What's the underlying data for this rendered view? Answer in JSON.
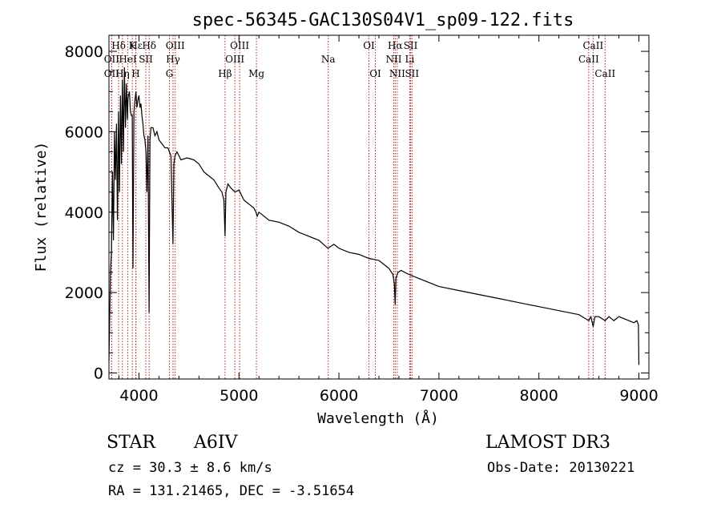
{
  "chart_data": {
    "type": "line",
    "title": "spec-56345-GAC130S04V1_sp09-122.fits",
    "xlabel": "Wavelength (Å)",
    "ylabel": "Flux (relative)",
    "xlim": [
      3700,
      9100
    ],
    "ylim": [
      -150,
      8400
    ],
    "xticks": [
      4000,
      5000,
      6000,
      7000,
      8000,
      9000
    ],
    "yticks": [
      0,
      2000,
      4000,
      6000,
      8000
    ],
    "series": [
      {
        "name": "flux",
        "x": [
          3700,
          3715,
          3725,
          3735,
          3745,
          3755,
          3765,
          3775,
          3785,
          3795,
          3805,
          3815,
          3825,
          3835,
          3845,
          3855,
          3865,
          3875,
          3885,
          3890,
          3895,
          3905,
          3915,
          3925,
          3933,
          3940,
          3950,
          3960,
          3970,
          3980,
          3990,
          4000,
          4010,
          4020,
          4030,
          4040,
          4050,
          4060,
          4070,
          4080,
          4090,
          4101,
          4110,
          4120,
          4140,
          4160,
          4180,
          4200,
          4230,
          4260,
          4290,
          4320,
          4340,
          4350,
          4360,
          4380,
          4420,
          4480,
          4550,
          4600,
          4650,
          4700,
          4750,
          4800,
          4830,
          4850,
          4861,
          4870,
          4890,
          4920,
          4960,
          5000,
          5050,
          5100,
          5150,
          5170,
          5183,
          5200,
          5250,
          5300,
          5400,
          5500,
          5600,
          5700,
          5800,
          5890,
          5950,
          6000,
          6100,
          6200,
          6300,
          6400,
          6450,
          6500,
          6540,
          6555,
          6563,
          6570,
          6590,
          6620,
          6700,
          6800,
          6900,
          7000,
          7200,
          7400,
          7600,
          7800,
          8000,
          8200,
          8400,
          8498,
          8520,
          8542,
          8560,
          8600,
          8662,
          8700,
          8750,
          8800,
          8850,
          8900,
          8950,
          8980,
          8995,
          9000
        ],
        "values": [
          300,
          2500,
          3000,
          5000,
          3300,
          6000,
          4800,
          6200,
          3800,
          6500,
          4500,
          6900,
          5200,
          7300,
          5500,
          7600,
          6100,
          7200,
          6300,
          6800,
          6900,
          7000,
          6500,
          6400,
          6400,
          2600,
          6500,
          6800,
          7000,
          6600,
          6800,
          6900,
          6600,
          6700,
          6400,
          6200,
          5900,
          5800,
          5500,
          4500,
          5900,
          1500,
          5800,
          6100,
          6100,
          5900,
          6000,
          5800,
          5700,
          5600,
          5600,
          5400,
          3200,
          5200,
          5400,
          5500,
          5300,
          5350,
          5300,
          5200,
          5000,
          4900,
          4800,
          4600,
          4500,
          4300,
          3400,
          4500,
          4700,
          4600,
          4500,
          4550,
          4300,
          4200,
          4100,
          4000,
          3900,
          4000,
          3900,
          3800,
          3750,
          3650,
          3500,
          3400,
          3300,
          3100,
          3200,
          3100,
          3000,
          2950,
          2850,
          2800,
          2700,
          2600,
          2450,
          2200,
          1700,
          2350,
          2500,
          2550,
          2450,
          2350,
          2250,
          2150,
          2050,
          1950,
          1850,
          1750,
          1650,
          1550,
          1450,
          1300,
          1400,
          1150,
          1400,
          1400,
          1300,
          1400,
          1300,
          1400,
          1350,
          1300,
          1250,
          1300,
          1200,
          200
        ]
      }
    ],
    "lines": [
      {
        "label": "Hδ",
        "x": 3797,
        "row": 0
      },
      {
        "label": "K",
        "x": 3934,
        "row": 0
      },
      {
        "label": "Hε",
        "x": 3970,
        "row": 0
      },
      {
        "label": "Hδ",
        "x": 4102,
        "row": 0
      },
      {
        "label": "OIII",
        "x": 4363,
        "row": 0
      },
      {
        "label": "OIII",
        "x": 5007,
        "row": 0
      },
      {
        "label": "OI",
        "x": 6300,
        "row": 0
      },
      {
        "label": "Hα",
        "x": 6563,
        "row": 0
      },
      {
        "label": "SII",
        "x": 6717,
        "row": 0
      },
      {
        "label": "CaII",
        "x": 8542,
        "row": 0
      },
      {
        "label": "OII",
        "x": 3727,
        "row": 1
      },
      {
        "label": "HeI",
        "x": 3889,
        "row": 1
      },
      {
        "label": "SII",
        "x": 4069,
        "row": 1
      },
      {
        "label": "Hγ",
        "x": 4341,
        "row": 1
      },
      {
        "label": "OIII",
        "x": 4959,
        "row": 1
      },
      {
        "label": "Na",
        "x": 5893,
        "row": 1
      },
      {
        "label": "NII",
        "x": 6548,
        "row": 1
      },
      {
        "label": "Li",
        "x": 6708,
        "row": 1
      },
      {
        "label": "CaII",
        "x": 8498,
        "row": 1
      },
      {
        "label": "OII",
        "x": 3727,
        "row": 2
      },
      {
        "label": "Hη",
        "x": 3835,
        "row": 2
      },
      {
        "label": "H",
        "x": 3968,
        "row": 2
      },
      {
        "label": "G",
        "x": 4305,
        "row": 2
      },
      {
        "label": "Hβ",
        "x": 4861,
        "row": 2
      },
      {
        "label": "Mg",
        "x": 5175,
        "row": 2
      },
      {
        "label": "OI",
        "x": 6364,
        "row": 2
      },
      {
        "label": "NII",
        "x": 6583,
        "row": 2
      },
      {
        "label": "SII",
        "x": 6731,
        "row": 2
      },
      {
        "label": "CaII",
        "x": 8662,
        "row": 2
      }
    ],
    "line_color": "#b22222"
  },
  "info": {
    "class": "STAR",
    "subclass": "A6IV",
    "survey": "LAMOST DR3",
    "cz": "cz = 30.3 ± 8.6 km/s",
    "obs_date": "Obs-Date: 20130221",
    "radec": "RA = 131.21465, DEC =  -3.51654"
  }
}
